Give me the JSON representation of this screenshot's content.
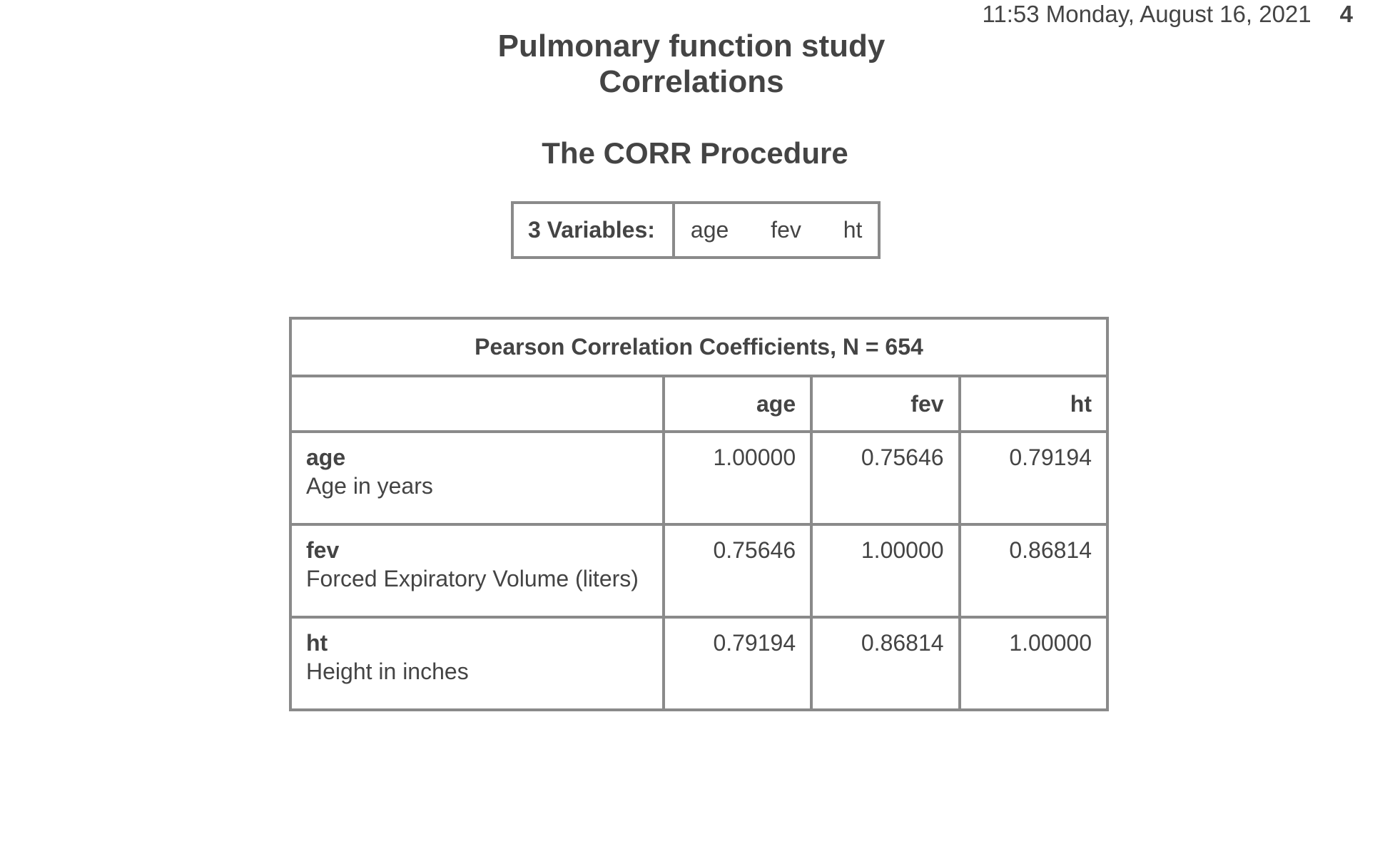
{
  "header": {
    "datetime": "11:53 Monday, August 16, 2021",
    "page_number": "4"
  },
  "titles": {
    "line1": "Pulmonary function study",
    "line2": "Correlations",
    "procedure": "The CORR Procedure"
  },
  "variables_box": {
    "label": "3  Variables:",
    "names": [
      "age",
      "fev",
      "ht"
    ]
  },
  "corr_table": {
    "caption": "Pearson Correlation Coefficients, N = 654",
    "columns": [
      "age",
      "fev",
      "ht"
    ],
    "rows": [
      {
        "name": "age",
        "label": "Age in years",
        "values": [
          "1.00000",
          "0.75646",
          "0.79194"
        ]
      },
      {
        "name": "fev",
        "label": "Forced Expiratory Volume (liters)",
        "values": [
          "0.75646",
          "1.00000",
          "0.86814"
        ]
      },
      {
        "name": "ht",
        "label": "Height in inches",
        "values": [
          "0.79194",
          "0.86814",
          "1.00000"
        ]
      }
    ]
  }
}
